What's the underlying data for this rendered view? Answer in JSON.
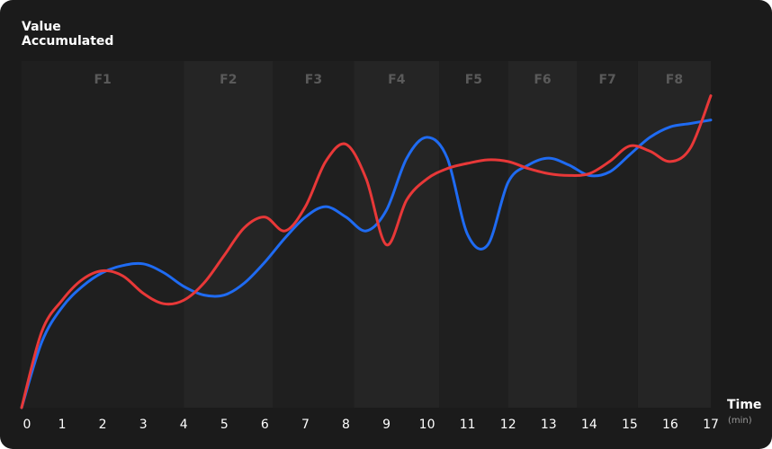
{
  "chart_data": {
    "type": "line",
    "xlabel": "Time",
    "xunit": "(min)",
    "ylabel": "Value Accumulated",
    "xlim": [
      0,
      17
    ],
    "ylim": [
      0,
      100
    ],
    "x_ticks": [
      0,
      1,
      2,
      3,
      4,
      5,
      6,
      7,
      8,
      9,
      10,
      11,
      12,
      13,
      14,
      15,
      16,
      17
    ],
    "grid": false,
    "bands": [
      {
        "label": "F1",
        "start": 0.0,
        "end": 4.0
      },
      {
        "label": "F2",
        "start": 4.0,
        "end": 6.2
      },
      {
        "label": "F3",
        "start": 6.2,
        "end": 8.2
      },
      {
        "label": "F4",
        "start": 8.2,
        "end": 10.3
      },
      {
        "label": "F5",
        "start": 10.3,
        "end": 12.0
      },
      {
        "label": "F6",
        "start": 12.0,
        "end": 13.7
      },
      {
        "label": "F7",
        "start": 13.7,
        "end": 15.2
      },
      {
        "label": "F8",
        "start": 15.2,
        "end": 17.0
      }
    ],
    "series": [
      {
        "color": "#1f6bf2",
        "points": [
          [
            0,
            0
          ],
          [
            0.5,
            19
          ],
          [
            1,
            29
          ],
          [
            1.5,
            35
          ],
          [
            2,
            39
          ],
          [
            2.5,
            41
          ],
          [
            3,
            41.5
          ],
          [
            3.5,
            39
          ],
          [
            4,
            35
          ],
          [
            4.5,
            32.5
          ],
          [
            5,
            32.5
          ],
          [
            5.5,
            36
          ],
          [
            6,
            42
          ],
          [
            6.5,
            49
          ],
          [
            7,
            55
          ],
          [
            7.5,
            58
          ],
          [
            8,
            55
          ],
          [
            8.5,
            51
          ],
          [
            9,
            57
          ],
          [
            9.5,
            72
          ],
          [
            10,
            78
          ],
          [
            10.5,
            72
          ],
          [
            11,
            50
          ],
          [
            11.5,
            47
          ],
          [
            12,
            65
          ],
          [
            12.5,
            70
          ],
          [
            13,
            72
          ],
          [
            13.5,
            70
          ],
          [
            14,
            67
          ],
          [
            14.5,
            68
          ],
          [
            15,
            73
          ],
          [
            15.5,
            78
          ],
          [
            16,
            81
          ],
          [
            16.5,
            82
          ],
          [
            17,
            83
          ]
        ]
      },
      {
        "color": "#e83838",
        "points": [
          [
            0,
            0
          ],
          [
            0.5,
            22
          ],
          [
            1,
            31
          ],
          [
            1.5,
            37
          ],
          [
            2,
            39.5
          ],
          [
            2.5,
            38
          ],
          [
            3,
            33
          ],
          [
            3.5,
            30
          ],
          [
            4,
            31
          ],
          [
            4.5,
            36
          ],
          [
            5,
            44
          ],
          [
            5.5,
            52
          ],
          [
            6,
            55
          ],
          [
            6.5,
            51
          ],
          [
            7,
            58
          ],
          [
            7.5,
            71
          ],
          [
            8,
            76
          ],
          [
            8.5,
            66
          ],
          [
            9,
            47
          ],
          [
            9.5,
            60
          ],
          [
            10,
            66
          ],
          [
            10.5,
            69
          ],
          [
            11,
            70.5
          ],
          [
            11.5,
            71.5
          ],
          [
            12,
            71
          ],
          [
            12.5,
            69
          ],
          [
            13,
            67.5
          ],
          [
            13.5,
            67
          ],
          [
            14,
            67.5
          ],
          [
            14.5,
            71
          ],
          [
            15,
            75.5
          ],
          [
            15.5,
            74
          ],
          [
            16,
            71
          ],
          [
            16.5,
            75
          ],
          [
            17,
            90
          ]
        ]
      }
    ]
  }
}
